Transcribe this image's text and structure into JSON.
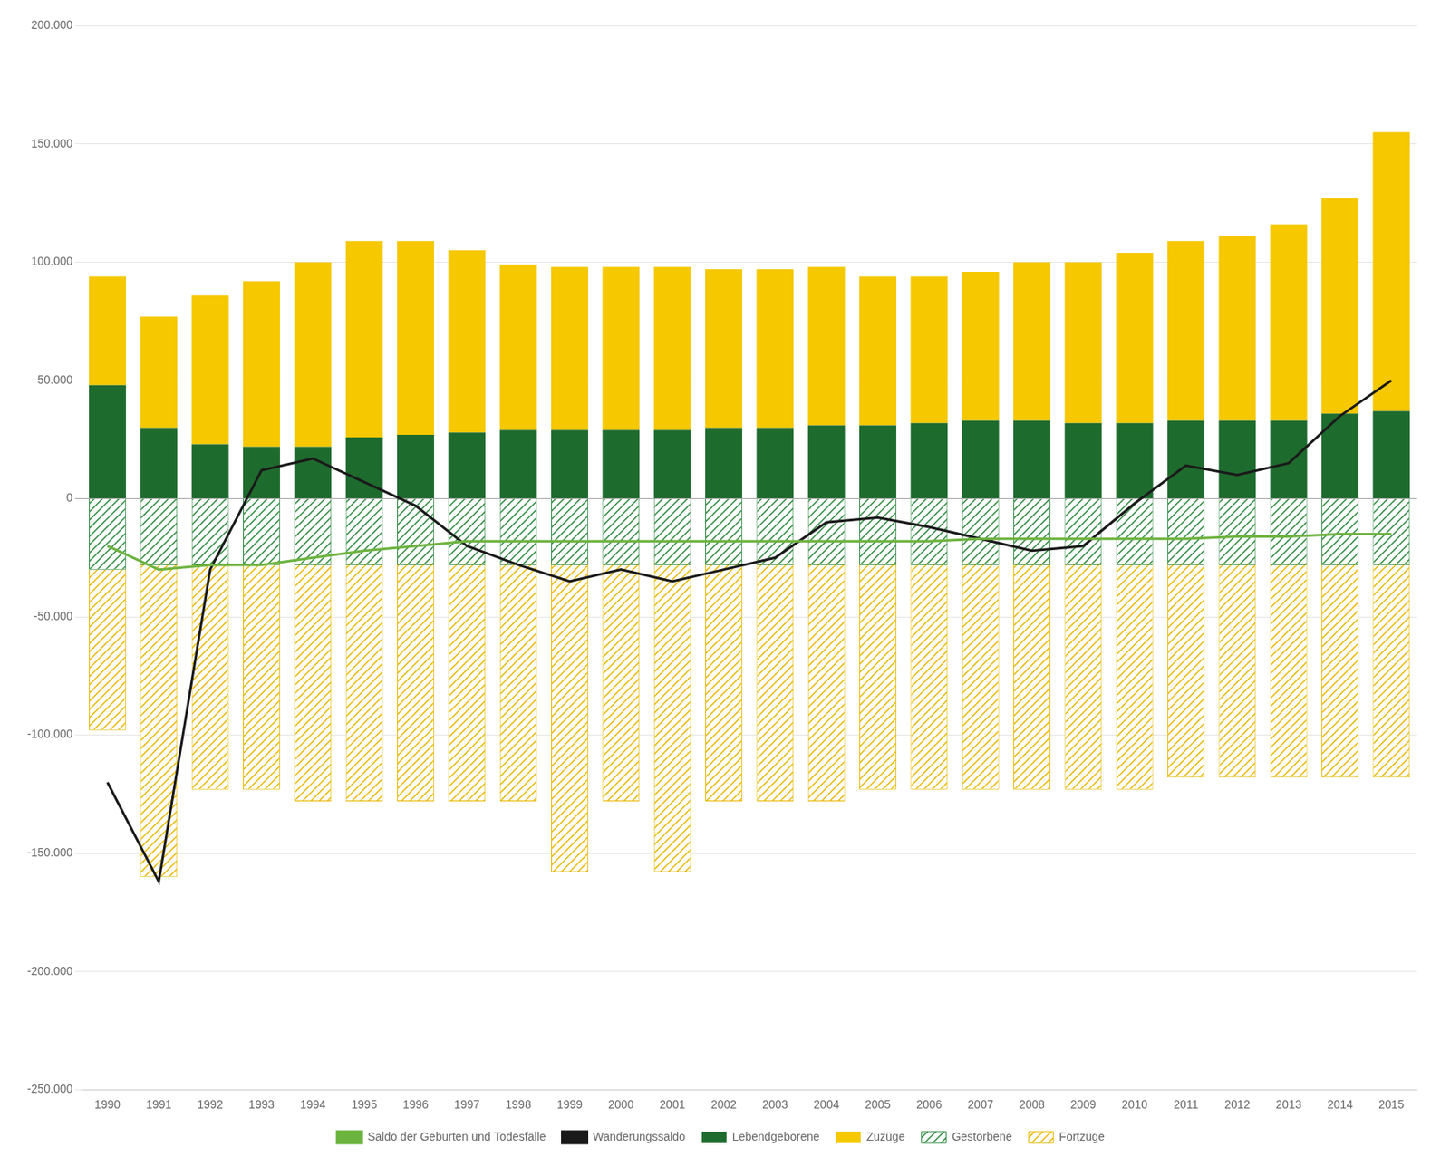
{
  "chart_data": {
    "type": "bar",
    "categories": [
      1990,
      1991,
      1992,
      1993,
      1994,
      1995,
      1996,
      1997,
      1998,
      1999,
      2000,
      2001,
      2002,
      2003,
      2004,
      2005,
      2006,
      2007,
      2008,
      2009,
      2010,
      2011,
      2012,
      2013,
      2014,
      2015
    ],
    "series": [
      {
        "name": "Lebendgeborene",
        "type": "bar",
        "color": "#1e6b2e",
        "values": [
          48000,
          30000,
          23000,
          22000,
          22000,
          26000,
          27000,
          28000,
          29000,
          29000,
          29000,
          29000,
          30000,
          30000,
          31000,
          31000,
          32000,
          33000,
          33000,
          32000,
          32000,
          33000,
          33000,
          33000,
          36000,
          37000
        ]
      },
      {
        "name": "Zuzüge",
        "type": "bar",
        "color": "#f5c800",
        "values": [
          46000,
          47000,
          63000,
          70000,
          78000,
          83000,
          82000,
          77000,
          70000,
          69000,
          69000,
          69000,
          67000,
          67000,
          67000,
          63000,
          62000,
          63000,
          67000,
          68000,
          72000,
          76000,
          78000,
          83000,
          91000,
          118000
        ]
      },
      {
        "name": "Gestorbene",
        "type": "bar",
        "color": "#2d8a3e",
        "values": [
          -30000,
          -28000,
          -28000,
          -28000,
          -28000,
          -28000,
          -28000,
          -28000,
          -28000,
          -28000,
          -28000,
          -28000,
          -28000,
          -28000,
          -28000,
          -28000,
          -28000,
          -28000,
          -28000,
          -28000,
          -28000,
          -28000,
          -28000,
          -28000,
          -28000,
          -28000
        ]
      },
      {
        "name": "Fortzüge",
        "type": "bar",
        "color": "#e8b800",
        "values": [
          -68000,
          -132000,
          -95000,
          -95000,
          -100000,
          -100000,
          -100000,
          -100000,
          -100000,
          -130000,
          -100000,
          -130000,
          -100000,
          -100000,
          -100000,
          -95000,
          -95000,
          -95000,
          -95000,
          -95000,
          -95000,
          -90000,
          -90000,
          -90000,
          -90000,
          -90000
        ]
      },
      {
        "name": "Saldo der Geburten und Todesfälle",
        "type": "line",
        "color": "#6db33f",
        "values": [
          -20000,
          -30000,
          -28000,
          -28000,
          -25000,
          -22000,
          -20000,
          -18000,
          -18000,
          -18000,
          -18000,
          -18000,
          -18000,
          -18000,
          -18000,
          -18000,
          -18000,
          -17000,
          -17000,
          -17000,
          -17000,
          -17000,
          -16000,
          -16000,
          -15000,
          -15000
        ]
      },
      {
        "name": "Wanderungssaldo",
        "type": "line",
        "color": "#1a1a1a",
        "values": [
          -120000,
          -162000,
          -30000,
          12000,
          17000,
          7000,
          -3000,
          -20000,
          -28000,
          -35000,
          -30000,
          -35000,
          -30000,
          -25000,
          -10000,
          -8000,
          -12000,
          -17000,
          -22000,
          -20000,
          -2000,
          14000,
          10000,
          15000,
          35000,
          50000
        ]
      }
    ],
    "stacked": true,
    "ylim": [
      -250000,
      200000
    ],
    "yticks": [
      {
        "value": -250000,
        "label": "-250.000"
      },
      {
        "value": -200000,
        "label": "-200.000"
      },
      {
        "value": -150000,
        "label": "-150.000"
      },
      {
        "value": -100000,
        "label": "-100.000"
      },
      {
        "value": -50000,
        "label": "-50.000"
      },
      0,
      {
        "value": 50000,
        "label": "50.000"
      },
      {
        "value": 100000,
        "label": "100.000"
      },
      {
        "value": 150000,
        "label": "150.000"
      },
      {
        "value": 200000,
        "label": "200.000"
      }
    ],
    "grid": true,
    "legend": "bottom"
  }
}
